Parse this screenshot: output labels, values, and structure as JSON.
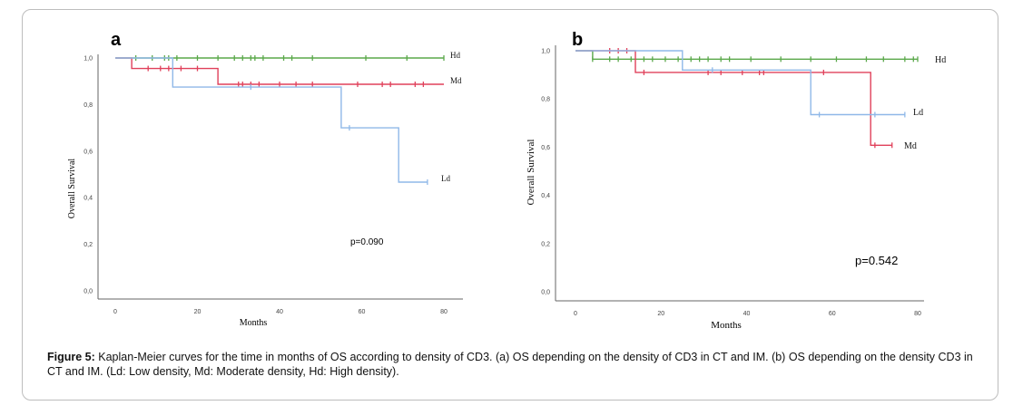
{
  "chart_data": [
    {
      "type": "line",
      "panel_label": "a",
      "xlabel": "Months",
      "ylabel": "Overall Survival",
      "xlim": [
        0,
        80
      ],
      "ylim": [
        0,
        1
      ],
      "xticks": [
        "0",
        "20",
        "40",
        "60",
        "80"
      ],
      "yticks": [
        "0,0",
        "0,2",
        "0,4",
        "0,6",
        "0,8",
        "1,0"
      ],
      "annotation": "p=0.090",
      "series": [
        {
          "name": "Hd",
          "color": "#5aa84a",
          "steps": [
            [
              0,
              1.0
            ],
            [
              80,
              1.0
            ]
          ],
          "censors": [
            [
              5,
              1.0
            ],
            [
              9,
              1.0
            ],
            [
              12,
              1.0
            ],
            [
              13,
              1.0
            ],
            [
              15,
              1.0
            ],
            [
              20,
              1.0
            ],
            [
              25,
              1.0
            ],
            [
              29,
              1.0
            ],
            [
              31,
              1.0
            ],
            [
              33,
              1.0
            ],
            [
              34,
              1.0
            ],
            [
              36,
              1.0
            ],
            [
              41,
              1.0
            ],
            [
              43,
              1.0
            ],
            [
              48,
              1.0
            ],
            [
              61,
              1.0
            ],
            [
              71,
              1.0
            ],
            [
              80,
              1.0
            ]
          ]
        },
        {
          "name": "Md",
          "color": "#e0405a",
          "steps": [
            [
              0,
              1.0
            ],
            [
              4,
              1.0
            ],
            [
              4,
              0.955
            ],
            [
              25,
              0.955
            ],
            [
              25,
              0.887
            ],
            [
              80,
              0.887
            ]
          ],
          "censors": [
            [
              8,
              0.955
            ],
            [
              11,
              0.955
            ],
            [
              13,
              0.955
            ],
            [
              16,
              0.955
            ],
            [
              20,
              0.955
            ],
            [
              30,
              0.887
            ],
            [
              31,
              0.887
            ],
            [
              33,
              0.887
            ],
            [
              35,
              0.887
            ],
            [
              40,
              0.887
            ],
            [
              44,
              0.887
            ],
            [
              48,
              0.887
            ],
            [
              59,
              0.887
            ],
            [
              65,
              0.887
            ],
            [
              67,
              0.887
            ],
            [
              73,
              0.887
            ],
            [
              75,
              0.887
            ]
          ]
        },
        {
          "name": "Ld",
          "color": "#8fb8e8",
          "steps": [
            [
              0,
              1.0
            ],
            [
              14,
              1.0
            ],
            [
              14,
              0.875
            ],
            [
              55,
              0.875
            ],
            [
              55,
              0.7
            ],
            [
              69,
              0.7
            ],
            [
              69,
              0.467
            ],
            [
              76,
              0.467
            ]
          ],
          "censors": [
            [
              33,
              0.875
            ],
            [
              57,
              0.7
            ],
            [
              76,
              0.467
            ]
          ]
        }
      ]
    },
    {
      "type": "line",
      "panel_label": "b",
      "xlabel": "Months",
      "ylabel": "Overall Survival",
      "xlim": [
        0,
        80
      ],
      "ylim": [
        0,
        1
      ],
      "xticks": [
        "0",
        "20",
        "40",
        "60",
        "80"
      ],
      "yticks": [
        "0,0",
        "0,2",
        "0,4",
        "0,6",
        "0,8",
        "1,0"
      ],
      "annotation": "p=0.542",
      "series": [
        {
          "name": "Hd",
          "color": "#5aa84a",
          "steps": [
            [
              0,
              1.0
            ],
            [
              4,
              1.0
            ],
            [
              4,
              0.965
            ],
            [
              80,
              0.965
            ]
          ],
          "censors": [
            [
              4,
              0.965
            ],
            [
              8,
              0.965
            ],
            [
              10,
              0.965
            ],
            [
              13,
              0.965
            ],
            [
              16,
              0.965
            ],
            [
              18,
              0.965
            ],
            [
              21,
              0.965
            ],
            [
              24,
              0.965
            ],
            [
              27,
              0.965
            ],
            [
              29,
              0.965
            ],
            [
              31,
              0.965
            ],
            [
              34,
              0.965
            ],
            [
              36,
              0.965
            ],
            [
              41,
              0.965
            ],
            [
              48,
              0.965
            ],
            [
              55,
              0.965
            ],
            [
              61,
              0.965
            ],
            [
              68,
              0.965
            ],
            [
              72,
              0.965
            ],
            [
              77,
              0.965
            ],
            [
              79,
              0.965
            ],
            [
              80,
              0.965
            ]
          ]
        },
        {
          "name": "Md",
          "color": "#e0405a",
          "steps": [
            [
              0,
              1.0
            ],
            [
              14,
              1.0
            ],
            [
              14,
              0.91
            ],
            [
              69,
              0.91
            ],
            [
              69,
              0.608
            ],
            [
              74,
              0.608
            ]
          ],
          "censors": [
            [
              8,
              1.0
            ],
            [
              10,
              1.0
            ],
            [
              12,
              1.0
            ],
            [
              16,
              0.91
            ],
            [
              31,
              0.91
            ],
            [
              34,
              0.91
            ],
            [
              39,
              0.91
            ],
            [
              43,
              0.91
            ],
            [
              44,
              0.91
            ],
            [
              58,
              0.91
            ],
            [
              70,
              0.608
            ],
            [
              74,
              0.608
            ]
          ]
        },
        {
          "name": "Ld",
          "color": "#8fb8e8",
          "steps": [
            [
              0,
              1.0
            ],
            [
              25,
              1.0
            ],
            [
              25,
              0.92
            ],
            [
              55,
              0.92
            ],
            [
              55,
              0.735
            ],
            [
              77,
              0.735
            ]
          ],
          "censors": [
            [
              32,
              0.92
            ],
            [
              57,
              0.735
            ],
            [
              70,
              0.735
            ],
            [
              77,
              0.735
            ]
          ]
        }
      ]
    }
  ],
  "caption": {
    "label": "Figure 5:",
    "text": " Kaplan-Meier curves for the time in months of OS according to density of CD3. (a) OS depending on the density of CD3 in CT and IM. (b) OS depending on the density CD3 in CT and IM. (Ld: Low density, Md: Moderate density, Hd: High density)."
  }
}
